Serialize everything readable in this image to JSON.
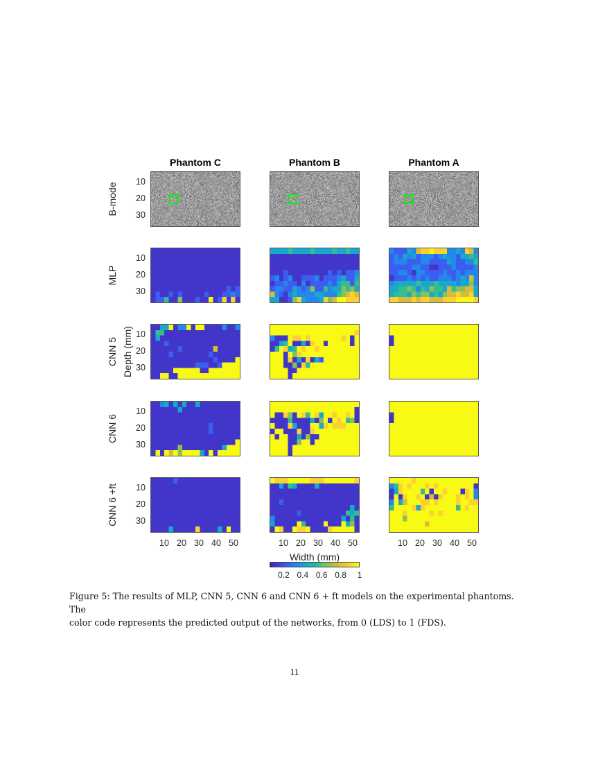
{
  "figure": {
    "column_titles": [
      "Phantom C",
      "Phantom B",
      "Phantom A"
    ],
    "row_labels": [
      "B-mode",
      "MLP",
      "CNN 5",
      "CNN 6",
      "CNN 6 +ft"
    ],
    "ylabel": "Depth (mm)",
    "xlabel": "Width (mm)",
    "y_ticks": [
      "10",
      "20",
      "30"
    ],
    "x_ticks": [
      "10",
      "20",
      "30",
      "40",
      "50"
    ],
    "colorbar_ticks": [
      "0.2",
      "0.4",
      "0.6",
      "0.8",
      "1"
    ]
  },
  "chart_data": {
    "type": "heatmap",
    "x_range_mm": [
      2,
      54
    ],
    "y_range_mm": [
      4,
      37
    ],
    "x_tick_values": [
      10,
      20,
      30,
      40,
      50
    ],
    "y_tick_values": [
      10,
      20,
      30
    ],
    "color_range": [
      0.05,
      1
    ],
    "colormap": "parula",
    "grid_encoding": "each digit d = predicted output d/9 (rows top to bottom)",
    "panels": {
      "MLP": {
        "Phantom C": [
          "11111111111111111111",
          "11111111111111111111",
          "11111111111111111111",
          "11111111111111111111",
          "11111111111111111111",
          "11111111111111111111",
          "11111111111111111111",
          "11111111111111111212",
          "12112121111121112232",
          "12251161112119128181"
        ],
        "Phantom B": [
          "44445444454444544544",
          "11111111111111111111",
          "11111111111111111111",
          "11111111111111111111",
          "11121111111112121223",
          "23123112223122234224",
          "12232213122223245525",
          "23322432362253446564",
          "73213433334433356787",
          "44112684333486799888"
        ],
        "Phantom A": [
          "32224378898883343873",
          "23243423332343324454",
          "23332223322224322335",
          "22222332211222322223",
          "22332133222232232333",
          "12223232322333234373",
          "34444454445444434463",
          "44556535465547566774",
          "45554656645467787784",
          "88777878877788899998"
        ]
      },
      "CNN 5": {
        "Phantom C": [
          "11449133919911113113",
          "15511111111111111111",
          "14111111111111111111",
          "11121111111111111111",
          "11111121111111711111",
          "11112111111112111111",
          "11111111111111211119",
          "11111111112221129999",
          "11111999999119999999",
          "11991199999999999999"
        ],
        "Phantom B": [
          "99999999999999999999",
          "99999999999999999998",
          "31119889899999998919",
          "11459114189919999919",
          "15984598998999999999",
          "99919689999999999999",
          "99918141814299999999",
          "99911618599999999999",
          "99991199999999999999",
          "99991999999999999999"
        ],
        "Phantom A": [
          "99999999999999999999",
          "99999999999999999999",
          "19999999999999999999",
          "19999999999999999999",
          "99999999999999999999",
          "99999999999999999999",
          "99999999999999999999",
          "99999999999999999999",
          "99999999999999999999",
          "99999999999999999999"
        ]
      },
      "CNN 6": {
        "Phantom C": [
          "11341414114111111111",
          "11111141111111111111",
          "11111111111111111111",
          "11111111111111111111",
          "11111111111112111111",
          "11111111111112111111",
          "11111111111111111111",
          "11111111111111111119",
          "11111161111111114999",
          "19197969999419199999"
        ],
        "Phantom B": [
          "99999999999999999999",
          "99999999999999999991",
          "91186198598499899891",
          "11115111141691989561",
          "91118411199489888999",
          "19911181189999999999",
          "91991141611999999999",
          "99991169919999999999",
          "99991999999999999999",
          "99991999999999999999"
        ],
        "Phantom A": [
          "99999999999999999999",
          "99999999999999999999",
          "19999999999999999999",
          "19999999999999999999",
          "99999999999999999999",
          "99999999999999999999",
          "99999999999999999999",
          "99999999999999999999",
          "99999999999999999999",
          "99999999999999999999"
        ]
      },
      "CNN 6 +ft": {
        "Phantom C": [
          "11111211111111111111",
          "11111111111111111111",
          "11111111111111111111",
          "11111111111111111111",
          "11111111111111111111",
          "11111111111111111111",
          "11111111111111111111",
          "11111111111111111111",
          "11111111111111111111",
          "11114111118111141911"
        ],
        "Phantom B": [
          "98889999988899999998",
          "11415411114111111111",
          "11111111111111111111",
          "11111111111111111111",
          "11211111111111111111",
          "11111111111111111141",
          "11111121111111111545",
          "31111111111111114151",
          "41111195111191119461",
          "19811988911118999991"
        ],
        "Phantom A": [
          "99999899999999999999",
          "35898999898999999991",
          "14899995919989991893",
          "19189989171899989893",
          "39479998898999989988",
          "59999848999999959899",
          "99989999989899999999",
          "99969999999999999999",
          "99999999799999999999",
          "99999999999999999999"
        ]
      }
    }
  },
  "caption": {
    "line1": "Figure 5: The results of MLP, CNN 5, CNN 6 and CNN 6 + ft models on the experimental phantoms. The",
    "line2": "color code represents the predicted output of the networks, from 0 (LDS) to 1 (FDS)."
  },
  "page_number": "11"
}
